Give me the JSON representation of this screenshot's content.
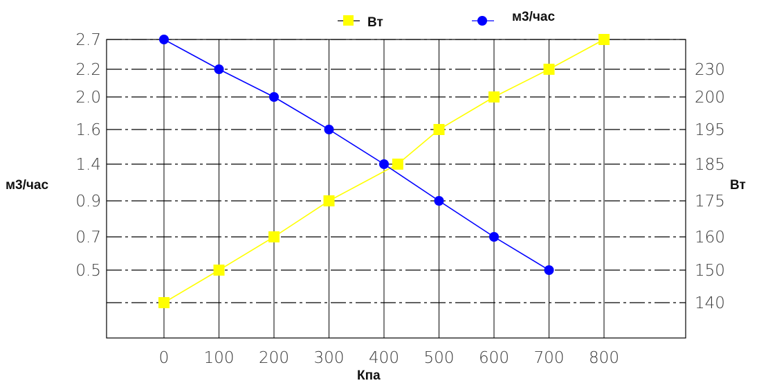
{
  "chart_data": {
    "type": "line",
    "title": "",
    "xlabel": "Кпа",
    "y_left_label": "м3/час",
    "y_right_label": "Вт",
    "x_ticks": [
      "0",
      "100",
      "200",
      "300",
      "400",
      "500",
      "600",
      "700",
      "800"
    ],
    "y_left_ticks": [
      "2.7",
      "2.2",
      "2.0",
      "1.6",
      "1.4",
      "0.9",
      "0.7",
      "0.5"
    ],
    "y_right_ticks": [
      "230",
      "200",
      "195",
      "185",
      "175",
      "160",
      "150",
      "140"
    ],
    "grid": true,
    "legend_position": "top",
    "series": [
      {
        "name": "Вт",
        "axis": "right",
        "color": "#ffff00",
        "marker": "square",
        "x": [
          0,
          100,
          200,
          300,
          425,
          500,
          600,
          700,
          800
        ],
        "y": [
          140,
          150,
          160,
          175,
          185,
          195,
          200,
          230,
          240
        ]
      },
      {
        "name": "м3/час",
        "axis": "left",
        "color": "#0000ff",
        "marker": "circle",
        "x": [
          0,
          100,
          200,
          300,
          400,
          500,
          600,
          700
        ],
        "y": [
          2.7,
          2.2,
          2.0,
          1.6,
          1.4,
          0.9,
          0.7,
          0.5
        ]
      }
    ]
  }
}
